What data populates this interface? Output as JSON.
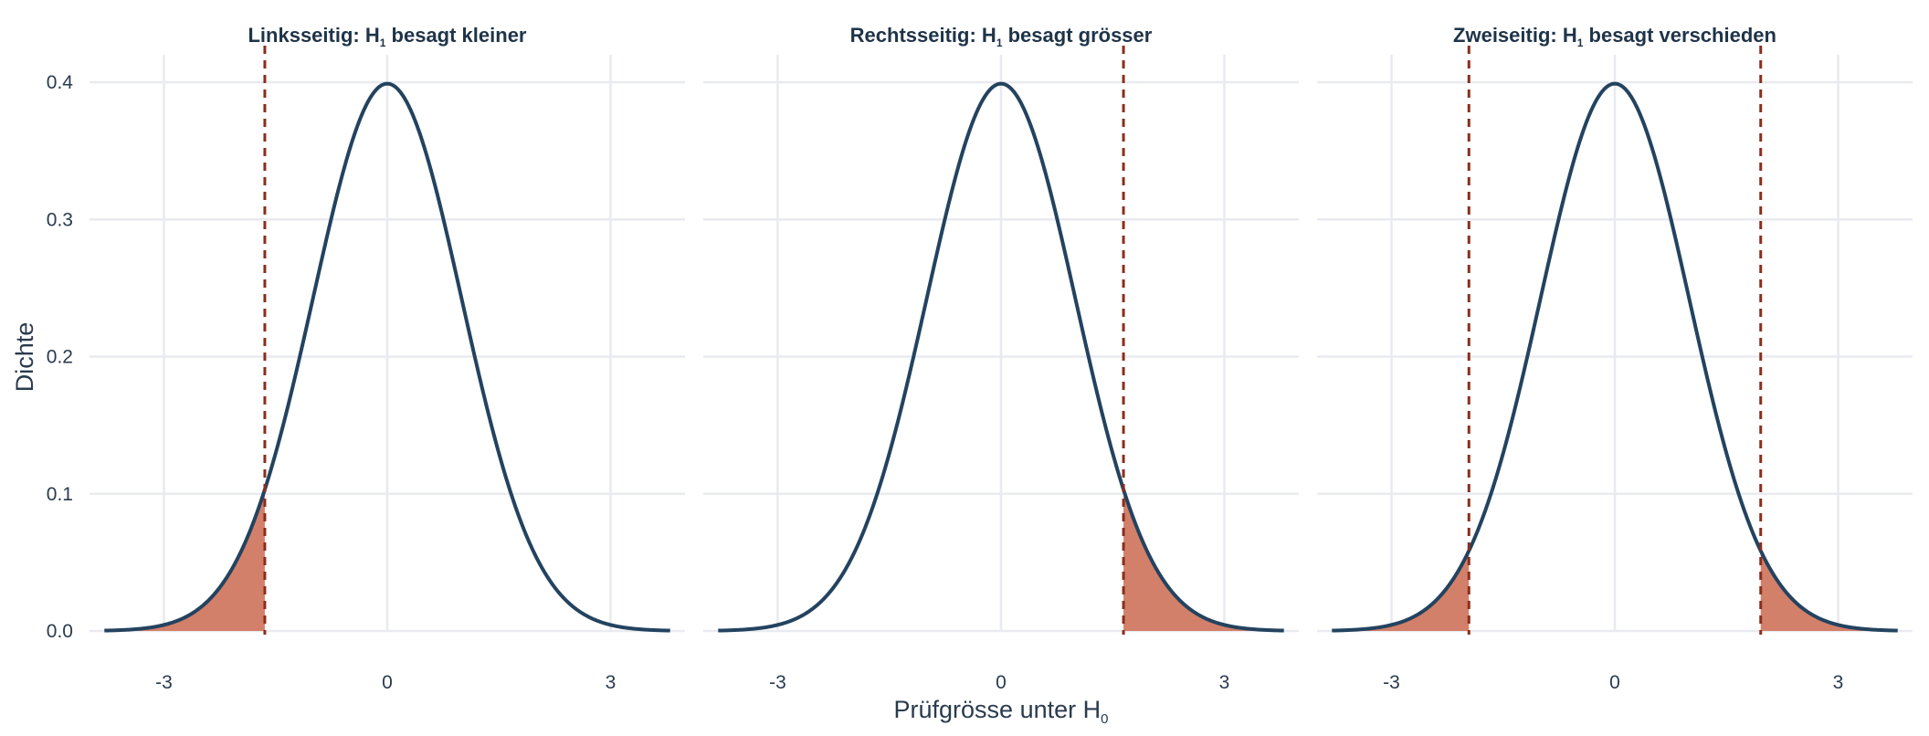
{
  "chart_data": {
    "type": "area",
    "xlabel": "Prüfgrösse unter H",
    "xlabel_sub": "0",
    "ylabel": "Dichte",
    "xlim": [
      -4.0,
      4.0
    ],
    "ylim": [
      0,
      0.42
    ],
    "x_ticks": [
      -3,
      0,
      3
    ],
    "x_tick_labels": [
      "-3",
      "0",
      "3"
    ],
    "y_ticks": [
      0.0,
      0.1,
      0.2,
      0.3,
      0.4
    ],
    "y_tick_labels": [
      "0.0",
      "0.1",
      "0.2",
      "0.3",
      "0.4"
    ],
    "curve_range": [
      -3.8,
      3.8
    ],
    "grid": true,
    "colors": {
      "curve": "#23435f",
      "fill": "#d3806a",
      "critical": "#8a2e1c"
    },
    "panels": [
      {
        "title_pre": "Linksseitig: H",
        "title_sub": "1",
        "title_post": " besagt kleiner",
        "critical_values": [
          -1.645
        ],
        "shaded": [
          [
            -3.8,
            -1.645
          ]
        ]
      },
      {
        "title_pre": "Rechtsseitig: H",
        "title_sub": "1",
        "title_post": " besagt grösser",
        "critical_values": [
          1.645
        ],
        "shaded": [
          [
            1.645,
            3.8
          ]
        ]
      },
      {
        "title_pre": "Zweiseitig: H",
        "title_sub": "1",
        "title_post": " besagt verschieden",
        "critical_values": [
          -1.96,
          1.96
        ],
        "shaded": [
          [
            -3.8,
            -1.96
          ],
          [
            1.96,
            3.8
          ]
        ]
      }
    ]
  }
}
